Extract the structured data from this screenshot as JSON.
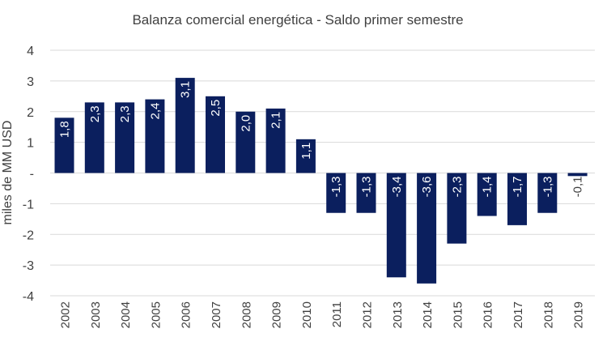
{
  "chart_data": {
    "type": "bar",
    "title": "Balanza comercial energética - Saldo primer semestre",
    "xlabel": "",
    "ylabel": "miles de MM USD",
    "ylim": [
      -4,
      4
    ],
    "yticks": [
      4,
      3,
      2,
      1,
      0,
      -1,
      -2,
      -3,
      -4
    ],
    "ytick_labels": [
      "4",
      "3",
      "2",
      "1",
      "-",
      "-1",
      "-2",
      "-3",
      "-4"
    ],
    "grid": true,
    "bar_color": "#0b1f5e",
    "categories": [
      "2002",
      "2003",
      "2004",
      "2005",
      "2006",
      "2007",
      "2008",
      "2009",
      "2010",
      "2011",
      "2012",
      "2013",
      "2014",
      "2015",
      "2016",
      "2017",
      "2018",
      "2019"
    ],
    "values": [
      1.8,
      2.3,
      2.3,
      2.4,
      3.1,
      2.5,
      2.0,
      2.1,
      1.1,
      -1.3,
      -1.3,
      -3.4,
      -3.6,
      -2.3,
      -1.4,
      -1.7,
      -1.3,
      -0.1
    ],
    "data_labels": [
      "1,8",
      "2,3",
      "2,3",
      "2,4",
      "3,1",
      "2,5",
      "2,0",
      "2,1",
      "1,1",
      "-1,3",
      "-1,3",
      "-3,4",
      "-3,6",
      "-2,3",
      "-1,4",
      "-1,7",
      "-1,3",
      "-0,1"
    ]
  }
}
